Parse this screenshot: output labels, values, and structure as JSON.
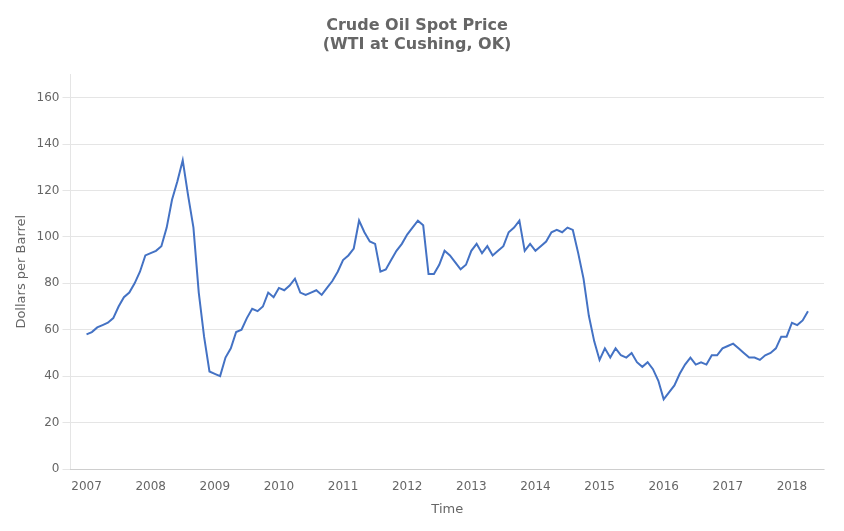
{
  "chart_data": {
    "type": "line",
    "title": "Crude Oil Spot Price\n(WTI at Cushing, OK)",
    "xlabel": "Time",
    "ylabel": "Dollars per Barrel",
    "x": [
      2007.0,
      2007.083,
      2007.167,
      2007.25,
      2007.333,
      2007.417,
      2007.5,
      2007.583,
      2007.667,
      2007.75,
      2007.833,
      2007.917,
      2008.0,
      2008.083,
      2008.167,
      2008.25,
      2008.333,
      2008.417,
      2008.5,
      2008.583,
      2008.667,
      2008.75,
      2008.833,
      2008.917,
      2009.0,
      2009.083,
      2009.167,
      2009.25,
      2009.333,
      2009.417,
      2009.5,
      2009.583,
      2009.667,
      2009.75,
      2009.833,
      2009.917,
      2010.0,
      2010.083,
      2010.167,
      2010.25,
      2010.333,
      2010.417,
      2010.5,
      2010.583,
      2010.667,
      2010.75,
      2010.833,
      2010.917,
      2011.0,
      2011.083,
      2011.167,
      2011.25,
      2011.333,
      2011.417,
      2011.5,
      2011.583,
      2011.667,
      2011.75,
      2011.833,
      2011.917,
      2012.0,
      2012.083,
      2012.167,
      2012.25,
      2012.333,
      2012.417,
      2012.5,
      2012.583,
      2012.667,
      2012.75,
      2012.833,
      2012.917,
      2013.0,
      2013.083,
      2013.167,
      2013.25,
      2013.333,
      2013.417,
      2013.5,
      2013.583,
      2013.667,
      2013.75,
      2013.833,
      2013.917,
      2014.0,
      2014.083,
      2014.167,
      2014.25,
      2014.333,
      2014.417,
      2014.5,
      2014.583,
      2014.667,
      2014.75,
      2014.833,
      2014.917,
      2015.0,
      2015.083,
      2015.167,
      2015.25,
      2015.333,
      2015.417,
      2015.5,
      2015.583,
      2015.667,
      2015.75,
      2015.833,
      2015.917,
      2016.0,
      2016.083,
      2016.167,
      2016.25,
      2016.333,
      2016.417,
      2016.5,
      2016.583,
      2016.667,
      2016.75,
      2016.833,
      2016.917,
      2017.0,
      2017.083,
      2017.167,
      2017.25,
      2017.333,
      2017.417,
      2017.5,
      2017.583,
      2017.667,
      2017.75,
      2017.833,
      2017.917,
      2018.0,
      2018.083,
      2018.167,
      2018.25
    ],
    "values": [
      58,
      59,
      61,
      62,
      63,
      65,
      70,
      74,
      76,
      80,
      85,
      92,
      93,
      94,
      96,
      104,
      116,
      124,
      133,
      118,
      104,
      76,
      57,
      42,
      41,
      40,
      48,
      52,
      59,
      60,
      65,
      69,
      68,
      70,
      76,
      74,
      78,
      77,
      79,
      82,
      76,
      75,
      76,
      77,
      75,
      78,
      81,
      85,
      90,
      92,
      95,
      107,
      102,
      98,
      97,
      85,
      86,
      90,
      94,
      97,
      101,
      104,
      107,
      105,
      84,
      84,
      88,
      94,
      92,
      89,
      86,
      88,
      94,
      97,
      93,
      96,
      92,
      94,
      96,
      102,
      104,
      107,
      94,
      97,
      94,
      96,
      98,
      102,
      103,
      102,
      104,
      103,
      93,
      82,
      66,
      55,
      47,
      52,
      48,
      52,
      49,
      48,
      50,
      46,
      44,
      46,
      43,
      38,
      30,
      33,
      36,
      41,
      45,
      48,
      45,
      46,
      45,
      49,
      49,
      52,
      53,
      54,
      52,
      50,
      48,
      48,
      47,
      49,
      50,
      52,
      57,
      57,
      63,
      62,
      64,
      68
    ],
    "color": "#4472C4",
    "xlim": [
      2006.75,
      2018.5
    ],
    "xticks": [
      2007,
      2008,
      2009,
      2010,
      2011,
      2012,
      2013,
      2014,
      2015,
      2016,
      2017,
      2018
    ],
    "ylim": [
      0,
      170
    ],
    "yticks": [
      0,
      20,
      40,
      60,
      80,
      100,
      120,
      140,
      160
    ],
    "grid": "y"
  }
}
